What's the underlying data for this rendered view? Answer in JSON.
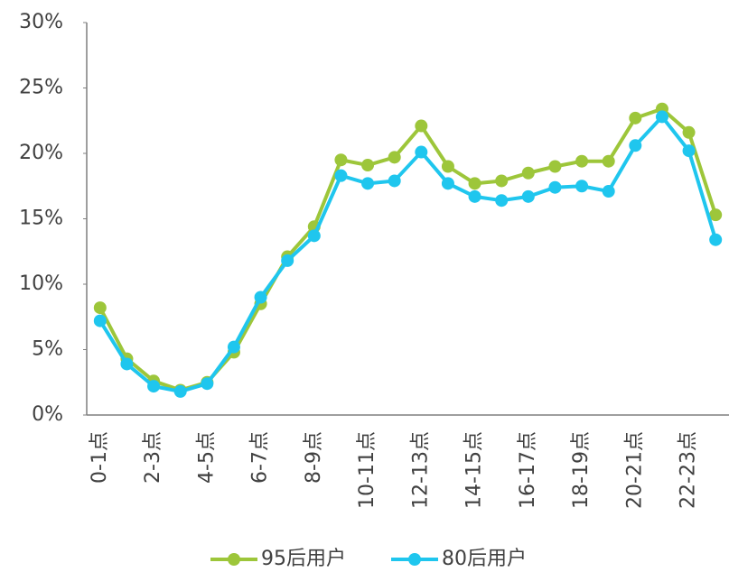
{
  "chart_data": {
    "type": "line",
    "categories": [
      "0-1点",
      null,
      "2-3点",
      null,
      "4-5点",
      null,
      "6-7点",
      null,
      "8-9点",
      null,
      "10-11点",
      null,
      "12-13点",
      null,
      "14-15点",
      null,
      "16-17点",
      null,
      "18-19点",
      null,
      "20-21点",
      null,
      "22-23点",
      null
    ],
    "series": [
      {
        "name": "95后用户",
        "color": "#9dc63a",
        "values": [
          8.2,
          4.3,
          2.6,
          1.9,
          2.5,
          4.8,
          8.5,
          12.1,
          14.4,
          19.5,
          19.1,
          19.7,
          22.1,
          19.0,
          17.7,
          17.9,
          18.5,
          19.0,
          19.4,
          19.4,
          22.7,
          23.4,
          21.6,
          15.3
        ]
      },
      {
        "name": "80后用户",
        "color": "#1fc6ee",
        "values": [
          7.2,
          3.9,
          2.2,
          1.8,
          2.4,
          5.2,
          9.0,
          11.8,
          13.7,
          18.3,
          17.7,
          17.9,
          20.1,
          17.7,
          16.7,
          16.4,
          16.7,
          17.4,
          17.5,
          17.1,
          20.6,
          22.8,
          20.2,
          13.4
        ]
      }
    ],
    "ylim": [
      0,
      30
    ],
    "yticks": [
      {
        "value": 0,
        "label": "0%"
      },
      {
        "value": 5,
        "label": "5%"
      },
      {
        "value": 10,
        "label": "10%"
      },
      {
        "value": 15,
        "label": "15%"
      },
      {
        "value": 20,
        "label": "20%"
      },
      {
        "value": 25,
        "label": "25%"
      },
      {
        "value": 30,
        "label": "30%"
      }
    ],
    "legend": "bottom"
  }
}
